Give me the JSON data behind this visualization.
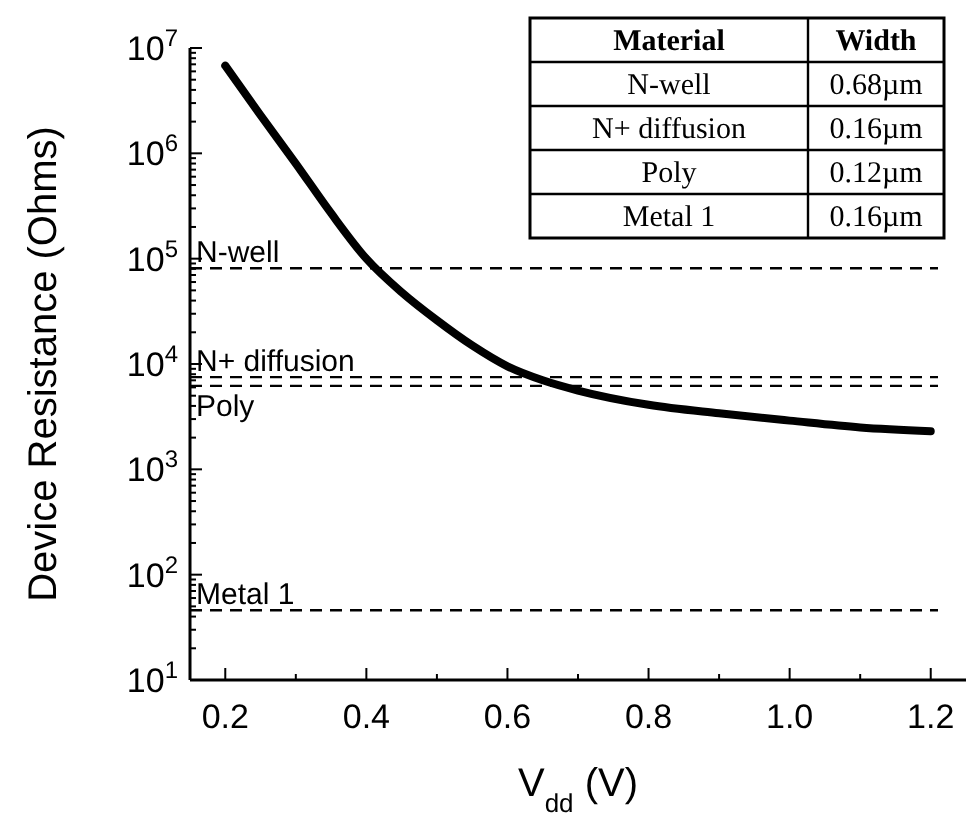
{
  "chart_data": {
    "type": "line",
    "xlabel": "V$_{dd}$ (V)",
    "ylabel": "Device Resistance (Ohms)",
    "log": "y",
    "line_style": "solid",
    "marker": "none",
    "grid": false,
    "xlim": [
      0.15,
      1.25
    ],
    "xticks": [
      0.2,
      {
        "value": 0.3,
        "label": null
      },
      0.4,
      {
        "value": 0.5,
        "label": null
      },
      0.6,
      {
        "value": 0.7,
        "label": null
      },
      0.8,
      {
        "value": 0.9,
        "label": null
      },
      {
        "value": 1.0,
        "label": "1.0"
      },
      {
        "value": 1.1,
        "label": null
      },
      1.2
    ],
    "ylim": [
      10,
      10000000
    ],
    "yticks": [
      {
        "value": 10,
        "label": "10$^{1}$"
      },
      {
        "value": 100,
        "label": "10$^{2}$"
      },
      {
        "value": 1000,
        "label": "10$^{3}$"
      },
      {
        "value": 10000,
        "label": "10$^{4}$"
      },
      {
        "value": 100000,
        "label": "10$^{5}$"
      },
      {
        "value": 1000000,
        "label": "10$^{6}$"
      },
      {
        "value": 10000000,
        "label": "10$^{7}$"
      }
    ],
    "x": [
      0.2,
      0.25,
      0.3,
      0.35,
      0.4,
      0.45,
      0.5,
      0.55,
      0.6,
      0.65,
      0.7,
      0.8,
      0.9,
      1.0,
      1.1,
      1.2
    ],
    "series": [
      {
        "color": "#000000",
        "values": [
          6800000,
          2300000,
          800000,
          270000,
          100000,
          48000,
          26000,
          15000,
          9500,
          7000,
          5600,
          4100,
          3400,
          2900,
          2500,
          2300
        ]
      }
    ],
    "ref_lines": [
      {
        "axis": "y",
        "value": 81000,
        "label": "N-well",
        "color": "#000000",
        "line_style": "dashed"
      },
      {
        "axis": "y",
        "value": 7500,
        "label": "N+ diffusion",
        "color": "#000000",
        "line_style": "dashed"
      },
      {
        "axis": "y",
        "value": 6200,
        "label": "Poly",
        "color": "#000000",
        "line_style": "dashed"
      },
      {
        "axis": "y",
        "value": 46,
        "label": "Metal 1",
        "color": "#000000",
        "line_style": "dashed"
      }
    ],
    "annotations": [
      "Material",
      "Width",
      "N-well",
      "0.68µm",
      "N+ diffusion",
      "0.16µm",
      "Poly",
      "0.12µm",
      "Metal 1",
      "0.16µm"
    ]
  }
}
